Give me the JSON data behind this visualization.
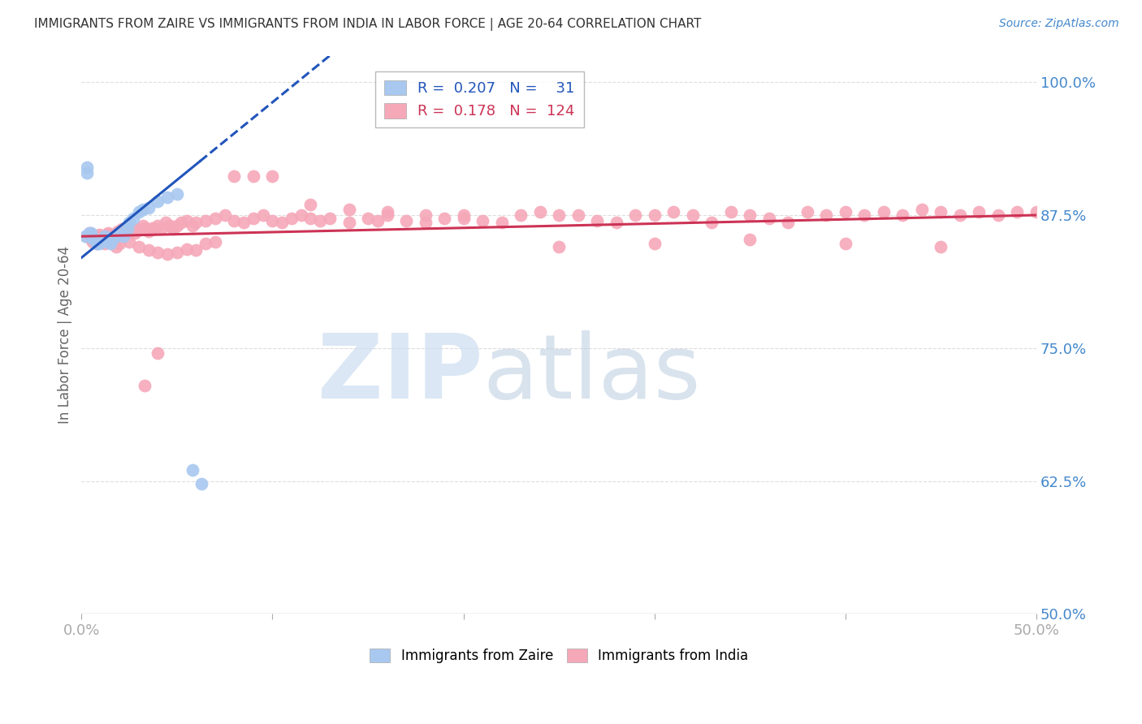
{
  "title": "IMMIGRANTS FROM ZAIRE VS IMMIGRANTS FROM INDIA IN LABOR FORCE | AGE 20-64 CORRELATION CHART",
  "source": "Source: ZipAtlas.com",
  "ylabel": "In Labor Force | Age 20-64",
  "zaire_color": "#a8c8f0",
  "india_color": "#f5a8b8",
  "regression_zaire_color": "#2255bb",
  "regression_india_color": "#cc3355",
  "background_color": "#ffffff",
  "grid_color": "#dddddd",
  "axis_color": "#4488cc",
  "title_color": "#333333",
  "xlim": [
    0.0,
    0.5
  ],
  "ylim": [
    0.5,
    1.025
  ],
  "zaire_x": [
    0.002,
    0.003,
    0.003,
    0.004,
    0.005,
    0.006,
    0.007,
    0.008,
    0.008,
    0.009,
    0.01,
    0.011,
    0.012,
    0.013,
    0.014,
    0.015,
    0.016,
    0.018,
    0.02,
    0.022,
    0.024,
    0.025,
    0.027,
    0.03,
    0.032,
    0.035,
    0.04,
    0.045,
    0.05,
    0.058,
    0.063
  ],
  "zaire_y": [
    0.855,
    0.92,
    0.915,
    0.858,
    0.858,
    0.853,
    0.852,
    0.85,
    0.848,
    0.848,
    0.85,
    0.852,
    0.855,
    0.852,
    0.85,
    0.848,
    0.852,
    0.855,
    0.858,
    0.855,
    0.862,
    0.868,
    0.872,
    0.878,
    0.88,
    0.882,
    0.888,
    0.892,
    0.895,
    0.635,
    0.622
  ],
  "india_x": [
    0.003,
    0.004,
    0.005,
    0.006,
    0.007,
    0.008,
    0.009,
    0.01,
    0.011,
    0.012,
    0.013,
    0.014,
    0.015,
    0.016,
    0.017,
    0.018,
    0.019,
    0.02,
    0.021,
    0.022,
    0.023,
    0.024,
    0.025,
    0.027,
    0.028,
    0.03,
    0.032,
    0.033,
    0.035,
    0.037,
    0.038,
    0.04,
    0.042,
    0.044,
    0.046,
    0.048,
    0.05,
    0.052,
    0.055,
    0.058,
    0.06,
    0.065,
    0.07,
    0.075,
    0.08,
    0.085,
    0.09,
    0.095,
    0.1,
    0.105,
    0.11,
    0.115,
    0.12,
    0.125,
    0.13,
    0.14,
    0.15,
    0.155,
    0.16,
    0.17,
    0.18,
    0.19,
    0.2,
    0.21,
    0.22,
    0.23,
    0.24,
    0.25,
    0.26,
    0.27,
    0.28,
    0.29,
    0.3,
    0.31,
    0.32,
    0.33,
    0.34,
    0.35,
    0.36,
    0.37,
    0.38,
    0.39,
    0.4,
    0.41,
    0.42,
    0.43,
    0.44,
    0.45,
    0.46,
    0.47,
    0.48,
    0.49,
    0.5,
    0.008,
    0.01,
    0.012,
    0.015,
    0.018,
    0.02,
    0.025,
    0.03,
    0.035,
    0.04,
    0.045,
    0.05,
    0.055,
    0.06,
    0.065,
    0.07,
    0.08,
    0.09,
    0.1,
    0.12,
    0.14,
    0.16,
    0.18,
    0.2,
    0.25,
    0.3,
    0.35,
    0.4,
    0.45,
    0.033,
    0.04
  ],
  "india_y": [
    0.855,
    0.858,
    0.853,
    0.85,
    0.852,
    0.855,
    0.857,
    0.855,
    0.852,
    0.855,
    0.857,
    0.858,
    0.857,
    0.852,
    0.855,
    0.858,
    0.86,
    0.858,
    0.862,
    0.86,
    0.863,
    0.858,
    0.86,
    0.862,
    0.858,
    0.862,
    0.865,
    0.863,
    0.86,
    0.863,
    0.862,
    0.865,
    0.863,
    0.868,
    0.865,
    0.862,
    0.865,
    0.868,
    0.87,
    0.865,
    0.868,
    0.87,
    0.872,
    0.875,
    0.87,
    0.868,
    0.872,
    0.875,
    0.87,
    0.868,
    0.872,
    0.875,
    0.872,
    0.87,
    0.872,
    0.868,
    0.872,
    0.87,
    0.875,
    0.87,
    0.868,
    0.872,
    0.875,
    0.87,
    0.868,
    0.875,
    0.878,
    0.875,
    0.875,
    0.87,
    0.868,
    0.875,
    0.875,
    0.878,
    0.875,
    0.868,
    0.878,
    0.875,
    0.872,
    0.868,
    0.878,
    0.875,
    0.878,
    0.875,
    0.878,
    0.875,
    0.88,
    0.878,
    0.875,
    0.878,
    0.875,
    0.878,
    0.878,
    0.848,
    0.852,
    0.848,
    0.85,
    0.845,
    0.848,
    0.85,
    0.845,
    0.842,
    0.84,
    0.838,
    0.84,
    0.843,
    0.842,
    0.848,
    0.85,
    0.912,
    0.912,
    0.912,
    0.885,
    0.88,
    0.878,
    0.875,
    0.872,
    0.845,
    0.848,
    0.852,
    0.848,
    0.845,
    0.715,
    0.745
  ]
}
